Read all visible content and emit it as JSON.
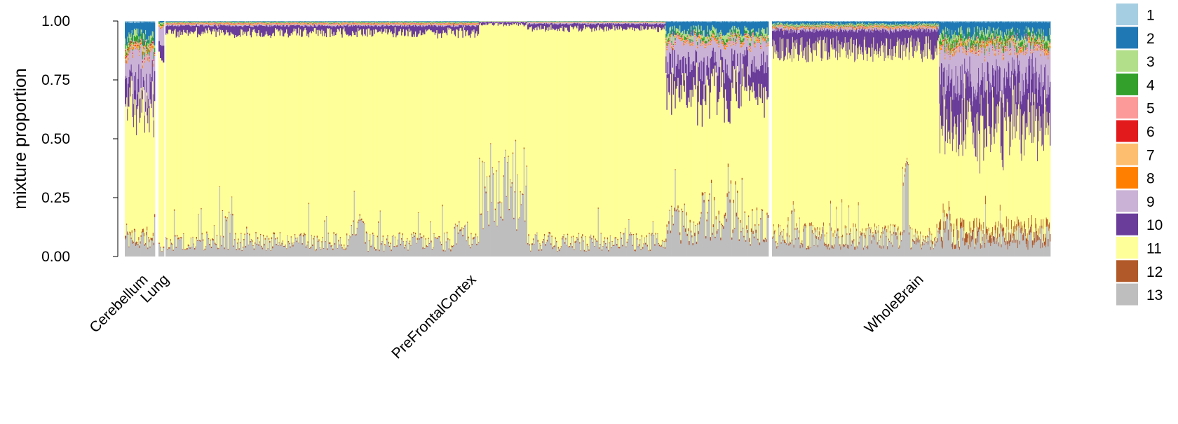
{
  "chart_data": {
    "type": "bar",
    "stacked": true,
    "ylabel": "mixture proportion",
    "ylim": [
      0,
      1
    ],
    "yticks": [
      "0.00",
      "0.25",
      "0.50",
      "0.75",
      "1.00"
    ],
    "grid": false,
    "legend_position": "right",
    "groups": [
      {
        "label": "Cerebellum",
        "n_samples": 40,
        "segments": [
          {
            "start": 0.0,
            "end": 1.0,
            "c13": 0.07,
            "c12": 0.01,
            "c10": 0.08,
            "c9": 0.15,
            "c8": 0.01,
            "c7": 0.01,
            "c6": 0.005,
            "c5": 0.005,
            "c4": 0.02,
            "c3": 0.02,
            "c2": 0.06,
            "c1": 0.005
          }
        ],
        "spikes": [
          {
            "pos": 0.15,
            "c13": 0.33
          },
          {
            "pos": 0.45,
            "c13": 0.17
          },
          {
            "pos": 0.75,
            "c13": 0.22
          },
          {
            "pos": 0.92,
            "c13": 0.24
          }
        ]
      },
      {
        "label": "Lung",
        "n_samples": 4,
        "segments": [
          {
            "start": 0.0,
            "end": 1.0,
            "c13": 0.05,
            "c12": 0.005,
            "c10": 0.05,
            "c9": 0.05,
            "c8": 0.005,
            "c7": 0.005,
            "c6": 0.0,
            "c5": 0.0,
            "c4": 0.005,
            "c3": 0.005,
            "c2": 0.005,
            "c1": 0.0
          }
        ],
        "spikes": []
      },
      {
        "label": "PreFrontalCortex",
        "n_samples": 650,
        "segments": [
          {
            "start": 0.0,
            "end": 0.52,
            "c13": 0.06,
            "c12": 0.005,
            "c10": 0.03,
            "c9": 0.005,
            "c8": 0.002,
            "c7": 0.002,
            "c6": 0.001,
            "c5": 0.002,
            "c4": 0.002,
            "c3": 0.003,
            "c2": 0.002,
            "c1": 0.001
          },
          {
            "start": 0.52,
            "end": 0.6,
            "c13": 0.3,
            "c12": 0.005,
            "c10": 0.01,
            "c9": 0.003,
            "c8": 0.0,
            "c7": 0.0,
            "c6": 0.0,
            "c5": 0.0,
            "c4": 0.0,
            "c3": 0.002,
            "c2": 0.0,
            "c1": 0.0
          },
          {
            "start": 0.6,
            "end": 0.83,
            "c13": 0.06,
            "c12": 0.005,
            "c10": 0.02,
            "c9": 0.005,
            "c8": 0.001,
            "c7": 0.001,
            "c6": 0.0,
            "c5": 0.001,
            "c4": 0.001,
            "c3": 0.002,
            "c2": 0.001,
            "c1": 0.0
          },
          {
            "start": 0.83,
            "end": 1.0,
            "c13": 0.12,
            "c12": 0.01,
            "c10": 0.12,
            "c9": 0.1,
            "c8": 0.005,
            "c7": 0.005,
            "c6": 0.002,
            "c5": 0.005,
            "c4": 0.01,
            "c3": 0.02,
            "c2": 0.04,
            "c1": 0.003
          }
        ],
        "spikes": [
          {
            "pos": 0.1,
            "c13": 0.19
          },
          {
            "pos": 0.32,
            "c13": 0.17
          },
          {
            "pos": 0.49,
            "c13": 0.14
          },
          {
            "pos": 0.85,
            "c13": 0.22
          },
          {
            "pos": 0.9,
            "c13": 0.26
          },
          {
            "pos": 0.94,
            "c13": 0.3
          }
        ]
      },
      {
        "label": "WholeBrain",
        "n_samples": 440,
        "segments": [
          {
            "start": 0.0,
            "end": 0.6,
            "c13": 0.08,
            "c12": 0.01,
            "c10": 0.08,
            "c9": 0.01,
            "c8": 0.003,
            "c7": 0.003,
            "c6": 0.001,
            "c5": 0.002,
            "c4": 0.003,
            "c3": 0.005,
            "c2": 0.01,
            "c1": 0.002
          },
          {
            "start": 0.6,
            "end": 1.0,
            "c13": 0.08,
            "c12": 0.03,
            "c10": 0.18,
            "c9": 0.14,
            "c8": 0.008,
            "c7": 0.008,
            "c6": 0.003,
            "c5": 0.005,
            "c4": 0.02,
            "c3": 0.02,
            "c2": 0.05,
            "c1": 0.004
          }
        ],
        "spikes": [
          {
            "pos": 0.07,
            "c13": 0.22
          },
          {
            "pos": 0.22,
            "c13": 0.26
          },
          {
            "pos": 0.48,
            "c13": 0.4
          },
          {
            "pos": 0.63,
            "c13": 0.2
          }
        ]
      }
    ],
    "series": [
      {
        "name": "1",
        "color": "#A6CEE3"
      },
      {
        "name": "2",
        "color": "#1F78B4"
      },
      {
        "name": "3",
        "color": "#B2DF8A"
      },
      {
        "name": "4",
        "color": "#33A02C"
      },
      {
        "name": "5",
        "color": "#FB9A99"
      },
      {
        "name": "6",
        "color": "#E31A1C"
      },
      {
        "name": "7",
        "color": "#FDBF6F"
      },
      {
        "name": "8",
        "color": "#FF7F00"
      },
      {
        "name": "9",
        "color": "#CAB2D6"
      },
      {
        "name": "10",
        "color": "#6A3D9A"
      },
      {
        "name": "11",
        "color": "#FFFF99"
      },
      {
        "name": "12",
        "color": "#B15928"
      },
      {
        "name": "13",
        "color": "#BEBEBE"
      }
    ]
  }
}
